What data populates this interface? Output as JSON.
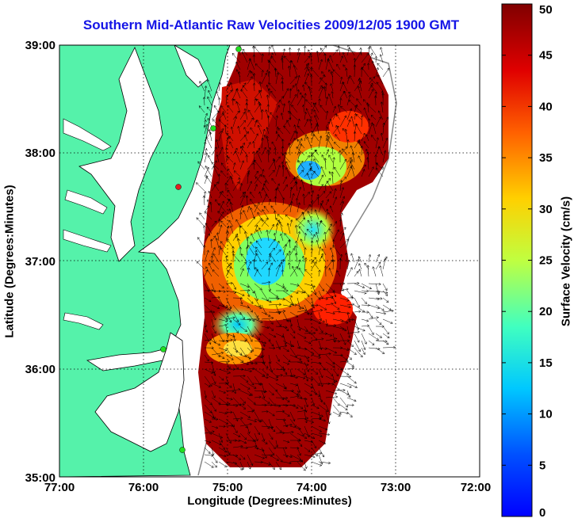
{
  "title": "Southern Mid-Atlantic Raw Velocities 2009/12/05 1900 GMT",
  "xlabel": "Longitude (Degrees:Minutes)",
  "ylabel": "Latitude (Degrees:Minutes)",
  "colorbar": {
    "label": "Surface Velocity (cm/s)",
    "min": 0,
    "max": 50,
    "ticks": [
      "0",
      "5",
      "10",
      "15",
      "20",
      "25",
      "30",
      "35",
      "40",
      "45",
      "50"
    ]
  },
  "map": {
    "lon_range": [
      -77,
      -72
    ],
    "lat_range": [
      35,
      39
    ],
    "x_ticks": [
      "77:00",
      "76:00",
      "75:00",
      "74:00",
      "73:00",
      "72:00"
    ],
    "y_ticks": [
      "35:00",
      "36:00",
      "37:00",
      "38:00",
      "39:00"
    ],
    "grid": "dotted",
    "land_color": "#55f2aa",
    "stations": [
      {
        "lon": -75.1,
        "lat": 39.0,
        "color": "green"
      },
      {
        "lon": -75.17,
        "lat": 38.22,
        "color": "green"
      },
      {
        "lon": -75.45,
        "lat": 37.7,
        "color": "red"
      },
      {
        "lon": -75.7,
        "lat": 36.2,
        "color": "green"
      },
      {
        "lon": -75.48,
        "lat": 35.25,
        "color": "green"
      }
    ]
  }
}
